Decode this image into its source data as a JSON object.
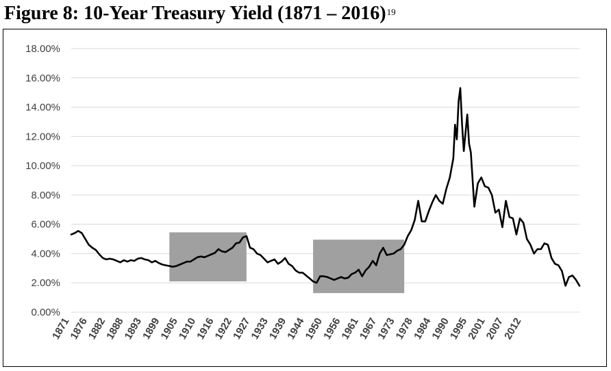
{
  "figure": {
    "title": "Figure 8: 10-Year Treasury Yield (1871 – 2016)",
    "footnote": "19"
  },
  "chart_data": {
    "type": "line",
    "title": "Figure 8: 10-Year Treasury Yield (1871 – 2016)",
    "xlabel": "",
    "ylabel": "",
    "xlim": [
      1871,
      2016
    ],
    "ylim": [
      0,
      18
    ],
    "y_tick_labels": [
      "0.00%",
      "2.00%",
      "4.00%",
      "6.00%",
      "8.00%",
      "10.00%",
      "12.00%",
      "14.00%",
      "16.00%",
      "18.00%"
    ],
    "x_tick_labels": [
      "1871",
      "1876",
      "1882",
      "1888",
      "1893",
      "1899",
      "1905",
      "1910",
      "1916",
      "1922",
      "1927",
      "1933",
      "1939",
      "1944",
      "1950",
      "1956",
      "1961",
      "1967",
      "1973",
      "1978",
      "1984",
      "1990",
      "1995",
      "2001",
      "2007",
      "2012"
    ],
    "grid": true,
    "legend": "none",
    "line_color": "#000000",
    "shaded_color": "#a0a0a0",
    "shaded_regions": [
      {
        "x": [
          1899,
          1921
        ],
        "y": [
          2.1,
          5.45
        ]
      },
      {
        "x": [
          1940,
          1966
        ],
        "y": [
          1.3,
          4.95
        ]
      }
    ],
    "series": [
      {
        "x": [
          1871,
          1872,
          1873,
          1874,
          1875,
          1876,
          1877,
          1878,
          1879,
          1880,
          1881,
          1882,
          1883,
          1884,
          1885,
          1886,
          1887,
          1888,
          1889,
          1890,
          1891,
          1892,
          1893,
          1894,
          1895,
          1896,
          1897,
          1898,
          1899,
          1900,
          1901,
          1902,
          1903,
          1904,
          1905,
          1906,
          1907,
          1908,
          1909,
          1910,
          1911,
          1912,
          1913,
          1914,
          1915,
          1916,
          1917,
          1918,
          1919,
          1920,
          1921,
          1922,
          1923,
          1924,
          1925,
          1926,
          1927,
          1928,
          1929,
          1930,
          1931,
          1932,
          1933,
          1934,
          1935,
          1936,
          1937,
          1938,
          1939,
          1940,
          1941,
          1942,
          1943,
          1944,
          1945,
          1946,
          1947,
          1948,
          1949,
          1950,
          1951,
          1952,
          1953,
          1954,
          1955,
          1956,
          1957,
          1958,
          1959,
          1960,
          1961,
          1962,
          1963,
          1964,
          1965,
          1966,
          1967,
          1968,
          1969,
          1970,
          1971,
          1972,
          1973,
          1974,
          1975,
          1976,
          1977,
          1978,
          1979,
          1980,
          1980.5,
          1981,
          1981.5,
          1982,
          1982.5,
          1983,
          1983.5,
          1984,
          1984.5,
          1985,
          1986,
          1987,
          1988,
          1989,
          1990,
          1991,
          1992,
          1993,
          1994,
          1995,
          1996,
          1997,
          1998,
          1999,
          2000,
          2001,
          2002,
          2003,
          2004,
          2005,
          2006,
          2007,
          2008,
          2009,
          2010,
          2011,
          2012,
          2013,
          2014,
          2015,
          2016
        ],
        "values": [
          5.3,
          5.4,
          5.55,
          5.4,
          5.0,
          4.6,
          4.4,
          4.25,
          3.95,
          3.7,
          3.6,
          3.65,
          3.6,
          3.5,
          3.4,
          3.55,
          3.45,
          3.55,
          3.5,
          3.65,
          3.7,
          3.6,
          3.55,
          3.4,
          3.5,
          3.35,
          3.25,
          3.2,
          3.15,
          3.1,
          3.15,
          3.25,
          3.35,
          3.45,
          3.45,
          3.6,
          3.75,
          3.8,
          3.75,
          3.85,
          3.95,
          4.05,
          4.3,
          4.15,
          4.1,
          4.25,
          4.4,
          4.7,
          4.75,
          5.1,
          5.2,
          4.4,
          4.3,
          4.0,
          3.9,
          3.65,
          3.4,
          3.5,
          3.6,
          3.3,
          3.45,
          3.7,
          3.3,
          3.15,
          2.85,
          2.7,
          2.7,
          2.5,
          2.3,
          2.1,
          2.0,
          2.45,
          2.45,
          2.4,
          2.3,
          2.2,
          2.3,
          2.4,
          2.3,
          2.35,
          2.6,
          2.7,
          2.9,
          2.45,
          2.85,
          3.1,
          3.5,
          3.2,
          4.0,
          4.4,
          3.9,
          3.95,
          4.0,
          4.2,
          4.3,
          4.6,
          5.2,
          5.6,
          6.3,
          7.6,
          6.2,
          6.2,
          6.9,
          7.5,
          8.0,
          7.6,
          7.4,
          8.4,
          9.2,
          10.5,
          12.8,
          11.8,
          14.4,
          15.3,
          12.8,
          11.0,
          12.3,
          13.5,
          11.5,
          10.9,
          7.2,
          8.8,
          9.2,
          8.6,
          8.5,
          8.0,
          6.8,
          7.0,
          5.8,
          7.6,
          6.5,
          6.4,
          5.3,
          6.4,
          6.1,
          5.0,
          4.6,
          4.0,
          4.3,
          4.3,
          4.7,
          4.6,
          3.7,
          3.3,
          3.2,
          2.8,
          1.8,
          2.4,
          2.5,
          2.2,
          1.8
        ]
      }
    ]
  }
}
